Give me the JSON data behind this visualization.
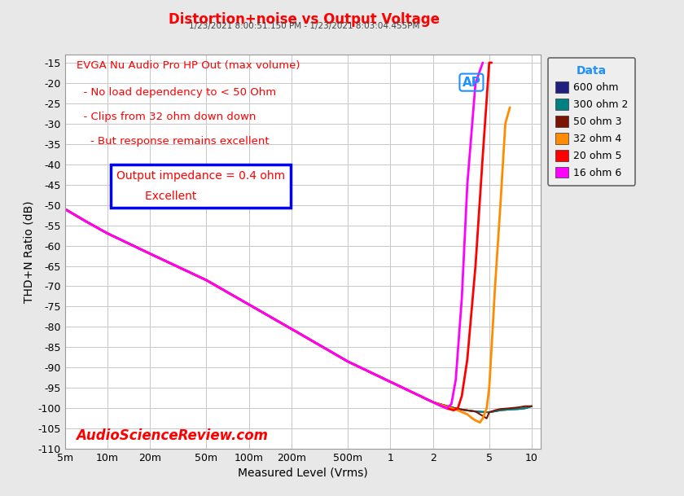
{
  "title": "Distortion+noise vs Output Voltage",
  "subtitle": "1/23/2021 8:00:51.150 PM - 1/23/2021 8:03:04.455PM",
  "xlabel": "Measured Level (Vrms)",
  "ylabel": "THD+N Ratio (dB)",
  "annotation_line1": "EVGA Nu Audio Pro HP Out (max volume)",
  "annotation_line2": "  - No load dependency to < 50 Ohm",
  "annotation_line3": "  - Clips from 32 ohm down down",
  "annotation_line4": "    - But response remains excellent",
  "box_line1": "Output impedance = 0.4 ohm",
  "box_line2": "        Excellent",
  "watermark": "AudioScienceReview.com",
  "ylim": [
    -110,
    -13
  ],
  "yticks": [
    -110,
    -105,
    -100,
    -95,
    -90,
    -85,
    -80,
    -75,
    -70,
    -65,
    -60,
    -55,
    -50,
    -45,
    -40,
    -35,
    -30,
    -25,
    -20,
    -15
  ],
  "xtick_positions": [
    0.005,
    0.01,
    0.02,
    0.05,
    0.1,
    0.2,
    0.5,
    1.0,
    2.0,
    5.0,
    10.0
  ],
  "xtick_labels": [
    "5m",
    "10m",
    "20m",
    "50m",
    "100m",
    "200m",
    "500m",
    "1",
    "2",
    "5",
    "10"
  ],
  "background_color": "#e8e8e8",
  "plot_bg_color": "#ffffff",
  "grid_color": "#c8c8c8",
  "title_color": "#ff0000",
  "annotation_color": "#ff0000",
  "watermark_color": "#ff0000",
  "series": [
    {
      "label": "600 ohm",
      "color": "#1f2080",
      "linewidth": 1.5,
      "x": [
        0.005,
        0.007,
        0.01,
        0.02,
        0.05,
        0.1,
        0.2,
        0.5,
        1.0,
        2.0,
        3.0,
        4.0,
        5.0,
        6.0,
        7.0,
        8.0,
        9.0,
        10.0
      ],
      "y": [
        -51,
        -54,
        -57,
        -62,
        -68.5,
        -74.5,
        -80.5,
        -88.5,
        -93.5,
        -98.5,
        -100.2,
        -100.8,
        -101,
        -100.5,
        -100.3,
        -100.2,
        -100.0,
        -99.5
      ]
    },
    {
      "label": "300 ohm 2",
      "color": "#008080",
      "linewidth": 1.5,
      "x": [
        0.005,
        0.007,
        0.01,
        0.02,
        0.05,
        0.1,
        0.2,
        0.5,
        1.0,
        2.0,
        3.0,
        4.0,
        5.0,
        6.0,
        7.0,
        8.0,
        9.0,
        10.0
      ],
      "y": [
        -51,
        -54,
        -57,
        -62,
        -68.5,
        -74.5,
        -80.5,
        -88.5,
        -93.5,
        -98.5,
        -100.2,
        -100.8,
        -101,
        -100.5,
        -100.3,
        -100.2,
        -100.0,
        -99.5
      ]
    },
    {
      "label": "50 ohm 3",
      "color": "#7b1500",
      "linewidth": 1.5,
      "x": [
        0.005,
        0.007,
        0.01,
        0.02,
        0.05,
        0.1,
        0.2,
        0.5,
        1.0,
        2.0,
        3.0,
        4.0,
        4.8,
        5.0,
        5.5,
        6.0,
        7.0,
        8.0,
        9.0,
        10.0
      ],
      "y": [
        -51,
        -54,
        -57,
        -62,
        -68.5,
        -74.5,
        -80.5,
        -88.5,
        -93.5,
        -98.5,
        -100.2,
        -100.8,
        -102.5,
        -101,
        -100.5,
        -100.2,
        -100.0,
        -99.8,
        -99.5,
        -99.5
      ]
    },
    {
      "label": "32 ohm 4",
      "color": "#ff8c00",
      "linewidth": 2.0,
      "x": [
        0.005,
        0.007,
        0.01,
        0.02,
        0.05,
        0.1,
        0.2,
        0.5,
        1.0,
        2.0,
        3.0,
        3.5,
        3.8,
        4.0,
        4.3,
        4.5,
        4.8,
        5.0,
        5.2,
        5.5,
        6.0,
        6.5,
        7.0
      ],
      "y": [
        -51,
        -54,
        -57,
        -62,
        -68.5,
        -74.5,
        -80.5,
        -88.5,
        -93.5,
        -98.5,
        -100.5,
        -101.5,
        -102.5,
        -103,
        -103.5,
        -102.5,
        -100,
        -95,
        -85,
        -70,
        -50,
        -30,
        -26
      ]
    },
    {
      "label": "20 ohm 5",
      "color": "#ff0000",
      "linewidth": 2.0,
      "x": [
        0.005,
        0.007,
        0.01,
        0.02,
        0.05,
        0.1,
        0.2,
        0.5,
        1.0,
        2.0,
        2.5,
        2.8,
        3.0,
        3.2,
        3.5,
        4.0,
        4.5,
        5.0,
        5.2
      ],
      "y": [
        -51,
        -54,
        -57,
        -62,
        -68.5,
        -74.5,
        -80.5,
        -88.5,
        -93.5,
        -98.5,
        -100,
        -100.5,
        -100,
        -97,
        -88,
        -65,
        -38,
        -15,
        -15
      ]
    },
    {
      "label": "16 ohm 6",
      "color": "#ff00ff",
      "linewidth": 2.0,
      "x": [
        0.005,
        0.007,
        0.01,
        0.02,
        0.05,
        0.1,
        0.2,
        0.5,
        1.0,
        2.0,
        2.3,
        2.5,
        2.7,
        2.9,
        3.2,
        3.5,
        4.0,
        4.5
      ],
      "y": [
        -51,
        -54,
        -57,
        -62,
        -68.5,
        -74.5,
        -80.5,
        -88.5,
        -93.5,
        -98.5,
        -99.5,
        -100,
        -99,
        -93,
        -73,
        -45,
        -20,
        -15
      ]
    }
  ],
  "legend_title": "Data",
  "legend_title_color": "#1e90ff",
  "legend_bg": "#f0f0f0",
  "legend_border": "#444444",
  "ap_logo_color": "#1e90ff",
  "subtitle_color": "#444444"
}
